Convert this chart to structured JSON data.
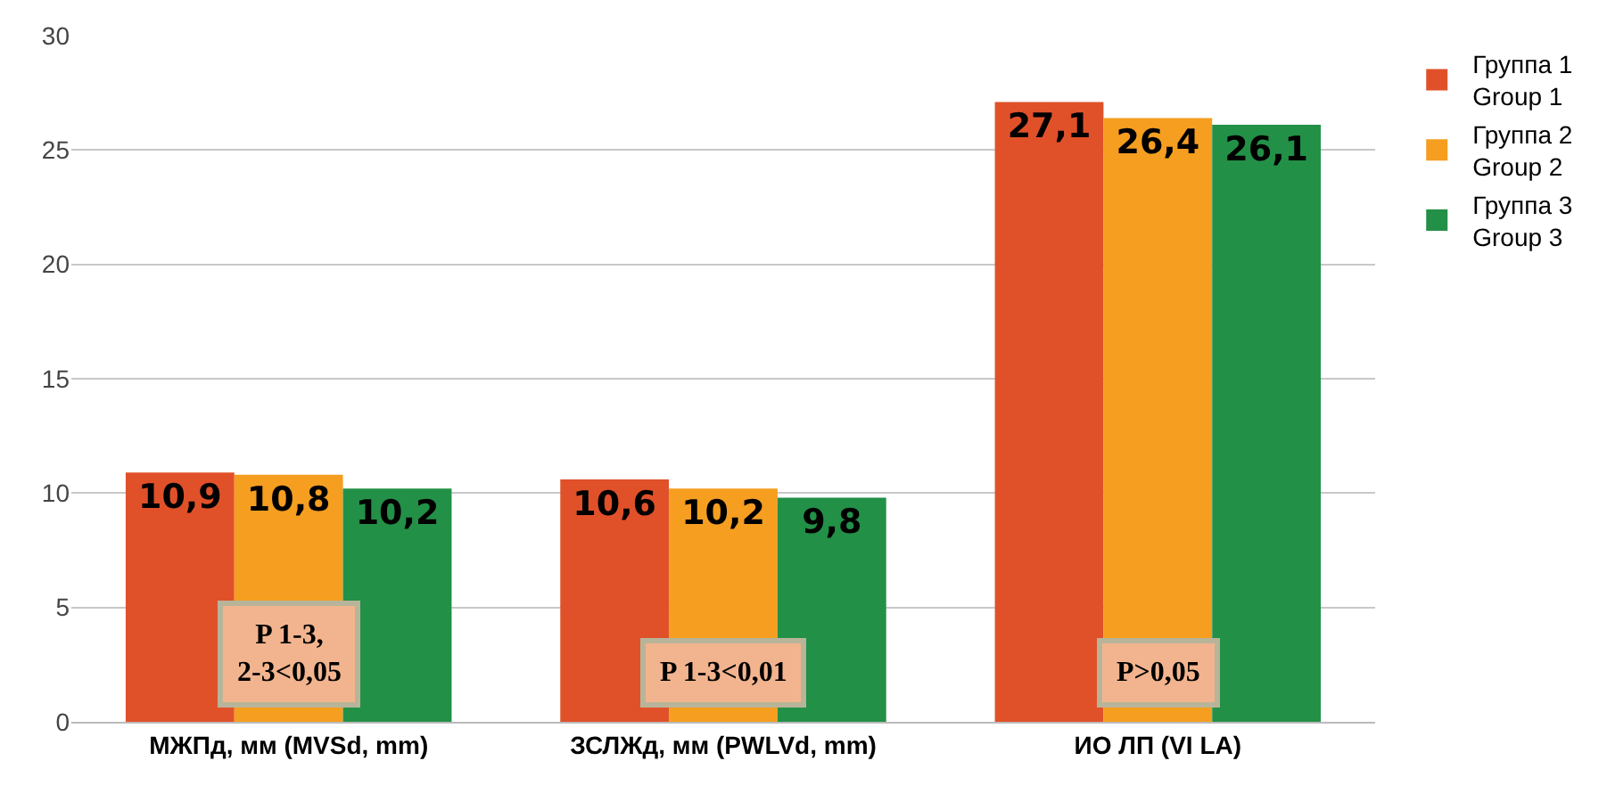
{
  "chart_data": {
    "type": "bar",
    "categories": [
      "МЖПд, мм (MVSd, mm)",
      "ЗСЛЖд, мм (PWLVd, mm)",
      "ИО ЛП (VI LA)"
    ],
    "series": [
      {
        "name": "Группа 1\nGroup 1",
        "color": "#e0512a",
        "values": [
          10.9,
          10.6,
          27.1
        ],
        "value_labels": [
          "10,9",
          "10,6",
          "27,1"
        ]
      },
      {
        "name": "Группа 2\nGroup 2",
        "color": "#f59e20",
        "values": [
          10.8,
          10.2,
          26.4
        ],
        "value_labels": [
          "10,8",
          "10,2",
          "26,4"
        ]
      },
      {
        "name": "Группа 3\nGroup 3",
        "color": "#239047",
        "values": [
          10.2,
          9.8,
          26.1
        ],
        "value_labels": [
          "10,2",
          "9,8",
          "26,1"
        ]
      }
    ],
    "annotations": [
      "P 1-3,\n2-3<0,05",
      "P 1-3<0,01",
      "P>0,05"
    ],
    "ylim": [
      0,
      30
    ],
    "yticks": [
      0,
      5,
      10,
      15,
      20,
      25,
      30
    ],
    "grid": "y",
    "legend": "top right"
  }
}
